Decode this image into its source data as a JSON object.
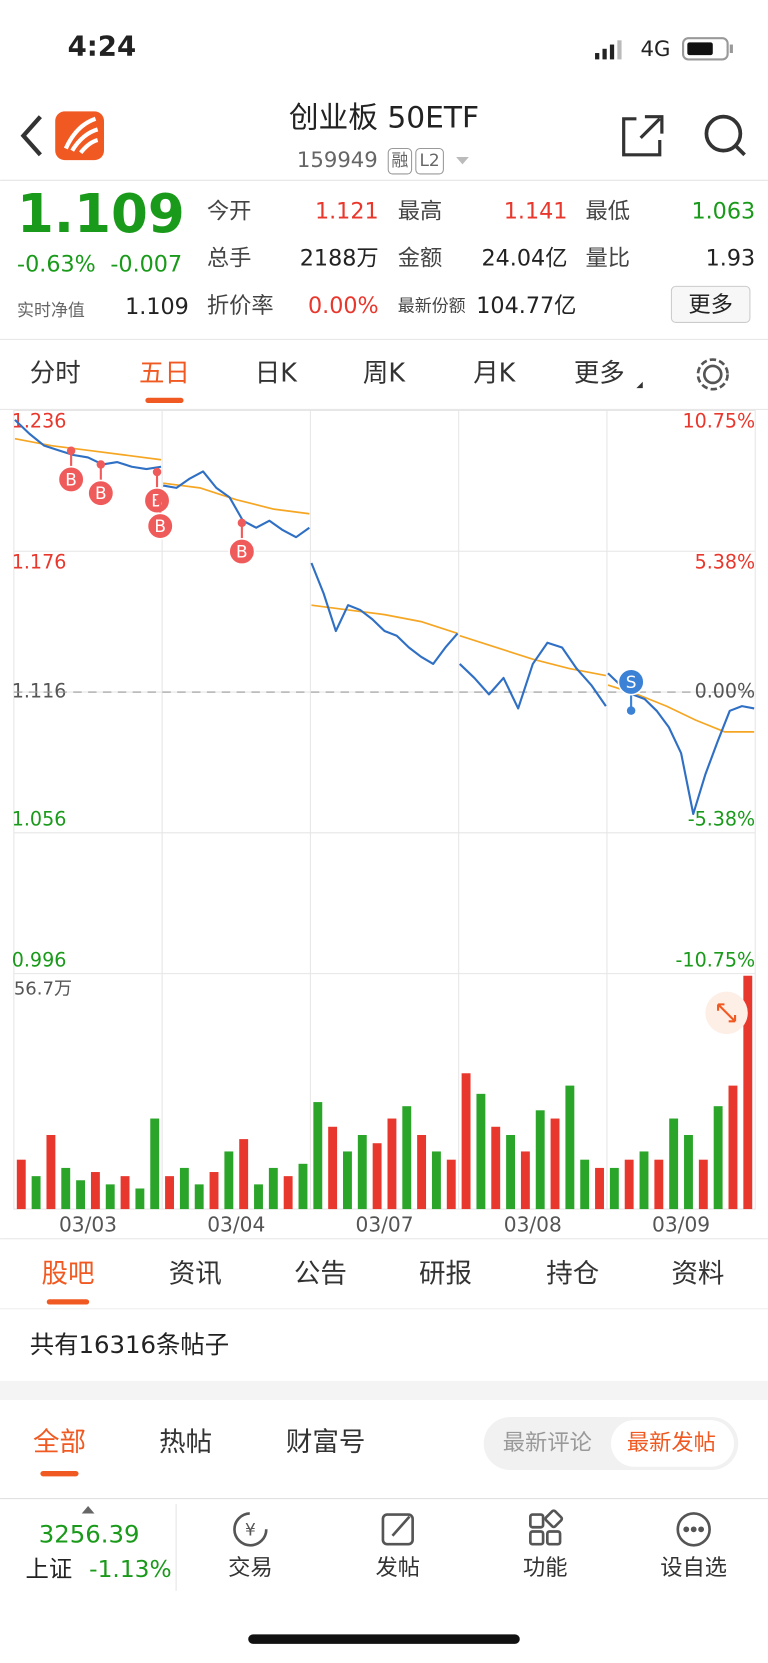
{
  "status": {
    "time": "4:24",
    "network": "4G"
  },
  "header": {
    "title": "创业板 50ETF",
    "code": "159949",
    "tags": [
      "融",
      "L2"
    ]
  },
  "quote": {
    "price": "1.109",
    "change_pct": "-0.63%",
    "change": "-0.007",
    "nav_label": "实时净值",
    "nav": "1.109",
    "fields": [
      {
        "label": "今开",
        "value": "1.121"
      },
      {
        "label": "最高",
        "value": "1.141"
      },
      {
        "label": "最低",
        "value": "1.063"
      },
      {
        "label": "总手",
        "value": "2188万"
      },
      {
        "label": "金额",
        "value": "24.04亿"
      },
      {
        "label": "量比",
        "value": "1.93"
      },
      {
        "label": "折价率",
        "value": "0.00%"
      },
      {
        "label": "最新份额",
        "value": "104.77亿"
      }
    ],
    "more": "更多"
  },
  "chart_tabs": [
    "分时",
    "五日",
    "日K",
    "周K",
    "月K",
    "更多"
  ],
  "chart_data": {
    "type": "line",
    "categories": [
      "03/03",
      "03/04",
      "03/07",
      "03/08",
      "03/09"
    ],
    "ylim": [
      0.996,
      1.236
    ],
    "yticks": [
      1.236,
      1.176,
      1.116,
      1.056,
      0.996
    ],
    "y2lim": [
      -10.75,
      10.75
    ],
    "y2ticks": [
      {
        "value": 10.75,
        "label": "10.75%"
      },
      {
        "value": 5.38,
        "label": "5.38%"
      },
      {
        "value": 0,
        "label": "0.00%"
      },
      {
        "value": -5.38,
        "label": "-5.38%"
      },
      {
        "value": -10.75,
        "label": "-10.75%"
      }
    ],
    "grid": true,
    "series": [
      {
        "color": "#2f6fc4",
        "values": [
          [
            1.232,
            1.226,
            1.221,
            1.219,
            1.217,
            1.216,
            1.213,
            1.214,
            1.212,
            1.211,
            1.212
          ],
          [
            1.204,
            1.203,
            1.207,
            1.21,
            1.203,
            1.199,
            1.189,
            1.186,
            1.189,
            1.185,
            1.182,
            1.186
          ],
          [
            1.171,
            1.158,
            1.142,
            1.153,
            1.151,
            1.147,
            1.142,
            1.14,
            1.135,
            1.131,
            1.128,
            1.135,
            1.141
          ],
          [
            1.128,
            1.122,
            1.115,
            1.122,
            1.109,
            1.128,
            1.137,
            1.135,
            1.126,
            1.119,
            1.11
          ],
          [
            1.124,
            1.119,
            1.115,
            1.113,
            1.108,
            1.101,
            1.09,
            1.064,
            1.081,
            1.095,
            1.108,
            1.11,
            1.109
          ]
        ]
      },
      {
        "color": "#f5a623",
        "values": [
          [
            1.224,
            1.221,
            1.219,
            1.217,
            1.215
          ],
          [
            1.205,
            1.203,
            1.198,
            1.194,
            1.192
          ],
          [
            1.153,
            1.151,
            1.149,
            1.146,
            1.141
          ],
          [
            1.14,
            1.135,
            1.13,
            1.126,
            1.123
          ],
          [
            1.119,
            1.115,
            1.11,
            1.104,
            1.099,
            1.099
          ]
        ]
      }
    ],
    "markers": [
      {
        "label": "B"
      },
      {
        "label": "B"
      },
      {
        "label": "B"
      },
      {
        "label": "B"
      },
      {
        "label": "B"
      },
      {
        "label": "S"
      }
    ],
    "volume": {
      "label": "56.7万",
      "ylim": [
        0,
        56.7
      ],
      "values": [
        12,
        8,
        18,
        10,
        7,
        9,
        6,
        8,
        5,
        22,
        8,
        10,
        6,
        9,
        14,
        17,
        6,
        10,
        8,
        11,
        26,
        20,
        14,
        18,
        16,
        22,
        25,
        18,
        14,
        12,
        33,
        28,
        20,
        18,
        14,
        24,
        22,
        30,
        12,
        10,
        10,
        12,
        14,
        12,
        22,
        18,
        12,
        25,
        30,
        56.7
      ],
      "colors": [
        "#e8372c",
        "#2aa52a",
        "#e8372c",
        "#2aa52a",
        "#2aa52a",
        "#e8372c",
        "#2aa52a",
        "#e8372c",
        "#2aa52a",
        "#2aa52a",
        "#e8372c",
        "#2aa52a",
        "#2aa52a",
        "#e8372c",
        "#2aa52a",
        "#e8372c",
        "#2aa52a",
        "#2aa52a",
        "#e8372c",
        "#2aa52a",
        "#2aa52a",
        "#e8372c",
        "#2aa52a",
        "#2aa52a",
        "#e8372c",
        "#e8372c",
        "#2aa52a",
        "#e8372c",
        "#2aa52a",
        "#e8372c",
        "#e8372c",
        "#2aa52a",
        "#e8372c",
        "#2aa52a",
        "#e8372c",
        "#2aa52a",
        "#e8372c",
        "#2aa52a",
        "#2aa52a",
        "#e8372c",
        "#2aa52a",
        "#e8372c",
        "#2aa52a",
        "#e8372c",
        "#2aa52a",
        "#2aa52a",
        "#e8372c",
        "#2aa52a",
        "#e8372c",
        "#e8372c"
      ]
    }
  },
  "feed_tabs": [
    "股吧",
    "资讯",
    "公告",
    "研报",
    "持仓",
    "资料"
  ],
  "post_count": "共有16316条帖子",
  "filter_tabs": [
    "全部",
    "热帖",
    "财富号"
  ],
  "sort_options": [
    "最新评论",
    "最新发帖"
  ],
  "bottom_bar": {
    "index_value": "3256.39",
    "index_name": "上证",
    "index_change": "-1.13%",
    "nav": [
      "交易",
      "发帖",
      "功能",
      "设自选"
    ]
  }
}
